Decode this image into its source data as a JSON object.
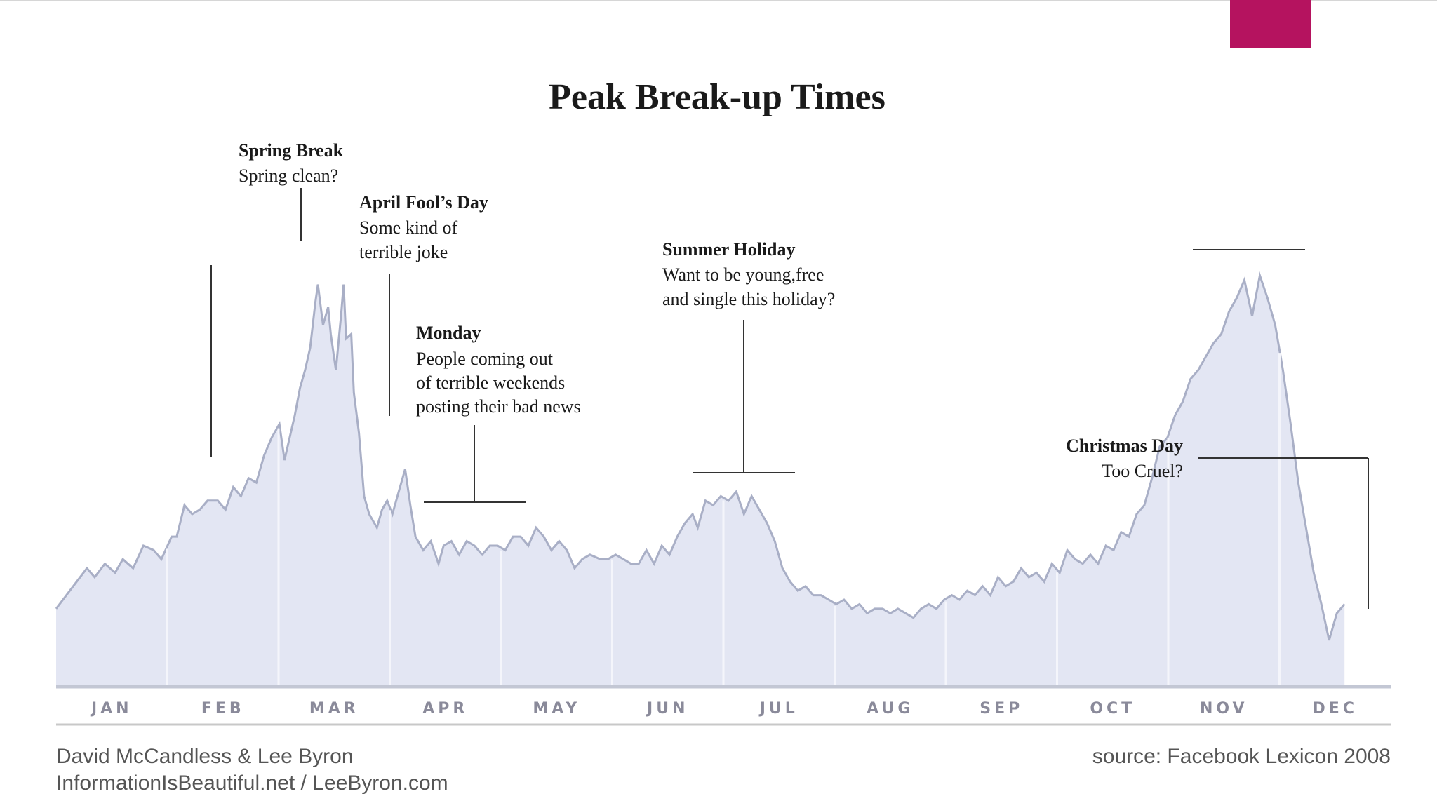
{
  "colors": {
    "accent": "#b5135f",
    "area_fill": "#e3e6f3",
    "area_stroke": "#a9afc6",
    "separator": "#f4f5fb",
    "text": "#111111",
    "month_label": "#8a8a9a",
    "credit": "#555555"
  },
  "chart_data": {
    "type": "area",
    "title": "Peak Break-up Times",
    "xlabel": "",
    "ylabel": "",
    "grid": false,
    "legend": "none",
    "x_unit": "week of year (0 = Jan 1, 52 = Dec 31)",
    "ylim": [
      0,
      100
    ],
    "categories": [
      "JAN",
      "FEB",
      "MAR",
      "APR",
      "MAY",
      "JUN",
      "JUL",
      "AUG",
      "SEP",
      "OCT",
      "NOV",
      "DEC"
    ],
    "points": [
      [
        0.0,
        17
      ],
      [
        0.4,
        20
      ],
      [
        0.8,
        23
      ],
      [
        1.2,
        26
      ],
      [
        1.5,
        24
      ],
      [
        1.9,
        27
      ],
      [
        2.3,
        25
      ],
      [
        2.6,
        28
      ],
      [
        3.0,
        26
      ],
      [
        3.4,
        31
      ],
      [
        3.8,
        30
      ],
      [
        4.1,
        28
      ],
      [
        4.5,
        33
      ],
      [
        4.7,
        33
      ],
      [
        5.0,
        40
      ],
      [
        5.3,
        38
      ],
      [
        5.6,
        39
      ],
      [
        5.9,
        41
      ],
      [
        6.3,
        41
      ],
      [
        6.6,
        39
      ],
      [
        6.9,
        44
      ],
      [
        7.2,
        42
      ],
      [
        7.5,
        46
      ],
      [
        7.8,
        45
      ],
      [
        8.1,
        51
      ],
      [
        8.4,
        55
      ],
      [
        8.7,
        58
      ],
      [
        8.9,
        50
      ],
      [
        9.1,
        55
      ],
      [
        9.3,
        60
      ],
      [
        9.5,
        66
      ],
      [
        9.7,
        70
      ],
      [
        9.9,
        75
      ],
      [
        10.1,
        85
      ],
      [
        10.2,
        89
      ],
      [
        10.4,
        80
      ],
      [
        10.6,
        84
      ],
      [
        10.7,
        78
      ],
      [
        10.9,
        70
      ],
      [
        11.1,
        82
      ],
      [
        11.2,
        89
      ],
      [
        11.3,
        77
      ],
      [
        11.5,
        78
      ],
      [
        11.6,
        65
      ],
      [
        11.8,
        56
      ],
      [
        12.0,
        42
      ],
      [
        12.2,
        38
      ],
      [
        12.5,
        35
      ],
      [
        12.7,
        39
      ],
      [
        12.9,
        41
      ],
      [
        13.1,
        38
      ],
      [
        13.4,
        44
      ],
      [
        13.6,
        48
      ],
      [
        13.8,
        40
      ],
      [
        14.0,
        33
      ],
      [
        14.3,
        30
      ],
      [
        14.6,
        32
      ],
      [
        14.9,
        27
      ],
      [
        15.1,
        31
      ],
      [
        15.4,
        32
      ],
      [
        15.7,
        29
      ],
      [
        16.0,
        32
      ],
      [
        16.3,
        31
      ],
      [
        16.6,
        29
      ],
      [
        16.9,
        31
      ],
      [
        17.2,
        31
      ],
      [
        17.5,
        30
      ],
      [
        17.8,
        33
      ],
      [
        18.1,
        33
      ],
      [
        18.4,
        31
      ],
      [
        18.7,
        35
      ],
      [
        19.0,
        33
      ],
      [
        19.3,
        30
      ],
      [
        19.6,
        32
      ],
      [
        19.9,
        30
      ],
      [
        20.2,
        26
      ],
      [
        20.5,
        28
      ],
      [
        20.8,
        29
      ],
      [
        21.2,
        28
      ],
      [
        21.5,
        28
      ],
      [
        21.8,
        29
      ],
      [
        22.1,
        28
      ],
      [
        22.4,
        27
      ],
      [
        22.7,
        27
      ],
      [
        23.0,
        30
      ],
      [
        23.3,
        27
      ],
      [
        23.6,
        31
      ],
      [
        23.9,
        29
      ],
      [
        24.2,
        33
      ],
      [
        24.5,
        36
      ],
      [
        24.8,
        38
      ],
      [
        25.0,
        35
      ],
      [
        25.3,
        41
      ],
      [
        25.6,
        40
      ],
      [
        25.9,
        42
      ],
      [
        26.2,
        41
      ],
      [
        26.5,
        43
      ],
      [
        26.8,
        38
      ],
      [
        27.1,
        42
      ],
      [
        27.4,
        39
      ],
      [
        27.7,
        36
      ],
      [
        28.0,
        32
      ],
      [
        28.3,
        26
      ],
      [
        28.6,
        23
      ],
      [
        28.9,
        21
      ],
      [
        29.2,
        22
      ],
      [
        29.5,
        20
      ],
      [
        29.8,
        20
      ],
      [
        30.1,
        19
      ],
      [
        30.4,
        18
      ],
      [
        30.7,
        19
      ],
      [
        31.0,
        17
      ],
      [
        31.3,
        18
      ],
      [
        31.6,
        16
      ],
      [
        31.9,
        17
      ],
      [
        32.2,
        17
      ],
      [
        32.5,
        16
      ],
      [
        32.8,
        17
      ],
      [
        33.1,
        16
      ],
      [
        33.4,
        15
      ],
      [
        33.7,
        17
      ],
      [
        34.0,
        18
      ],
      [
        34.3,
        17
      ],
      [
        34.6,
        19
      ],
      [
        34.9,
        20
      ],
      [
        35.2,
        19
      ],
      [
        35.5,
        21
      ],
      [
        35.8,
        20
      ],
      [
        36.1,
        22
      ],
      [
        36.4,
        20
      ],
      [
        36.7,
        24
      ],
      [
        37.0,
        22
      ],
      [
        37.3,
        23
      ],
      [
        37.6,
        26
      ],
      [
        37.9,
        24
      ],
      [
        38.2,
        25
      ],
      [
        38.5,
        23
      ],
      [
        38.8,
        27
      ],
      [
        39.1,
        25
      ],
      [
        39.4,
        30
      ],
      [
        39.7,
        28
      ],
      [
        40.0,
        27
      ],
      [
        40.3,
        29
      ],
      [
        40.6,
        27
      ],
      [
        40.9,
        31
      ],
      [
        41.2,
        30
      ],
      [
        41.5,
        34
      ],
      [
        41.8,
        33
      ],
      [
        42.1,
        38
      ],
      [
        42.4,
        40
      ],
      [
        42.7,
        46
      ],
      [
        43.0,
        53
      ],
      [
        43.3,
        55
      ],
      [
        43.6,
        60
      ],
      [
        43.9,
        63
      ],
      [
        44.2,
        68
      ],
      [
        44.5,
        70
      ],
      [
        44.8,
        73
      ],
      [
        45.1,
        76
      ],
      [
        45.4,
        78
      ],
      [
        45.7,
        83
      ],
      [
        46.0,
        86
      ],
      [
        46.3,
        90
      ],
      [
        46.6,
        82
      ],
      [
        46.9,
        91
      ],
      [
        47.2,
        86
      ],
      [
        47.5,
        80
      ],
      [
        47.8,
        70
      ],
      [
        48.1,
        58
      ],
      [
        48.4,
        45
      ],
      [
        48.7,
        35
      ],
      [
        49.0,
        25
      ],
      [
        49.3,
        18
      ],
      [
        49.6,
        10
      ],
      [
        49.9,
        16
      ],
      [
        50.2,
        18
      ]
    ]
  },
  "annotations": [
    {
      "title": "Spring Break",
      "lines": [
        "Spring clean?"
      ]
    },
    {
      "title": "April  Fool’s Day",
      "lines": [
        "Some kind of",
        "terrible joke"
      ]
    },
    {
      "title": "Monday",
      "lines": [
        "People coming out",
        "of terrible weekends",
        "posting their bad news"
      ]
    },
    {
      "title": "Summer Holiday",
      "lines": [
        "Want to be young,free",
        "and single this holiday?"
      ]
    },
    {
      "title": "Christmas  Day",
      "lines": [
        "Too Cruel?"
      ]
    }
  ],
  "credits": {
    "authors": "David McCandless & Lee Byron",
    "sites": "InformationIsBeautiful.net / LeeByron.com",
    "source": "source: Facebook Lexicon 2008"
  }
}
